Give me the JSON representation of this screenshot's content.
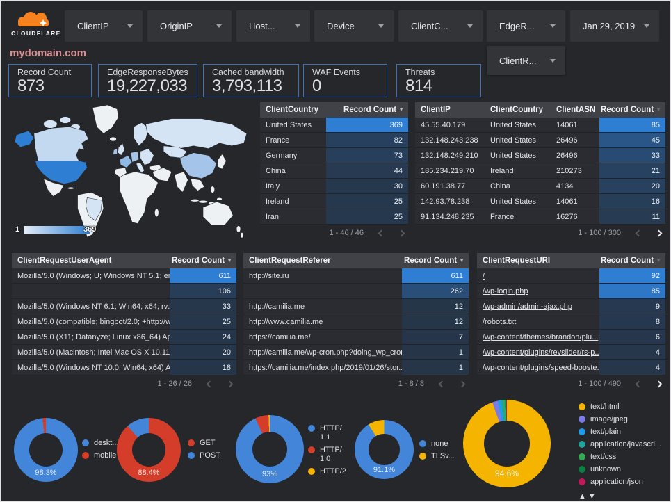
{
  "header": {
    "brand": "CLOUDFLARE",
    "filters": [
      "ClientIP",
      "OriginIP",
      "Host...",
      "Device",
      "ClientC...",
      "EdgeR..."
    ],
    "secondary_filter": "ClientR...",
    "date_filter": "Jan 29, 2019"
  },
  "title": "mydomain.com",
  "scorecards": [
    {
      "label": "Record Count",
      "value": "873"
    },
    {
      "label": "EdgeResponseBytes",
      "value": "19,227,033"
    },
    {
      "label": "Cached bandwidth",
      "value": "3,793,113"
    },
    {
      "label": "WAF Events",
      "value": "0"
    },
    {
      "label": "Threats",
      "value": "814"
    }
  ],
  "map": {
    "legend_min": "1",
    "legend_max": "369"
  },
  "icons": {
    "chevron_down": "▾",
    "sort_desc": "▼",
    "legend_up": "▲",
    "legend_down": "▼"
  },
  "colors": {
    "accent_blue": "#2e7ed3",
    "heat_low": "#263548",
    "scorecard_border": "#3e72b8",
    "title": "#d98e92",
    "blue": "#4285d9",
    "red": "#d43d2a",
    "yellow": "#f4b400"
  },
  "tables": {
    "client_country": {
      "columns": [
        "ClientCountry",
        "Record Count"
      ],
      "rows": [
        [
          "United States",
          369
        ],
        [
          "France",
          82
        ],
        [
          "Germany",
          73
        ],
        [
          "China",
          44
        ],
        [
          "Italy",
          30
        ],
        [
          "Ireland",
          25
        ],
        [
          "Iran",
          25
        ]
      ],
      "max": 369,
      "pagination": "1 - 46 / 46",
      "prev_enabled": false,
      "next_enabled": false
    },
    "client_ip": {
      "columns": [
        "ClientIP",
        "ClientCountry",
        "ClientASN",
        "Record Count"
      ],
      "rows": [
        [
          "45.55.40.179",
          "United States",
          "14061",
          85
        ],
        [
          "132.148.243.238",
          "United States",
          "26496",
          45
        ],
        [
          "132.148.249.210",
          "United States",
          "26496",
          33
        ],
        [
          "185.234.219.70",
          "Ireland",
          "210273",
          21
        ],
        [
          "60.191.38.77",
          "China",
          "4134",
          20
        ],
        [
          "142.93.78.238",
          "United States",
          "14061",
          16
        ],
        [
          "91.134.248.235",
          "France",
          "16276",
          11
        ]
      ],
      "max": 85,
      "pagination": "1 - 100 / 300",
      "prev_enabled": false,
      "next_enabled": true
    },
    "user_agent": {
      "columns": [
        "ClientRequestUserAgent",
        "Record Count"
      ],
      "rows": [
        [
          "Mozilla/5.0 (Windows; U; Windows NT 5.1; en-U...",
          611
        ],
        [
          "",
          106
        ],
        [
          "Mozilla/5.0 (Windows NT 6.1; Win64; x64; rv:64....",
          33
        ],
        [
          "Mozilla/5.0 (compatible; bingbot/2.0; +http://w...",
          25
        ],
        [
          "Mozilla/5.0 (X11; Datanyze; Linux x86_64) Appl...",
          24
        ],
        [
          "Mozilla/5.0 (Macintosh; Intel Mac OS X 10.11; r...",
          20
        ],
        [
          "Mozilla/5.0 (Windows NT 10.0; Win64; x64) App...",
          18
        ]
      ],
      "max": 611,
      "pagination": "1 - 26 / 26",
      "prev_enabled": false,
      "next_enabled": false
    },
    "referer": {
      "columns": [
        "ClientRequestReferer",
        "Record Count"
      ],
      "rows": [
        [
          "http://site.ru",
          611
        ],
        [
          "",
          262
        ],
        [
          "http://camilia.me",
          12
        ],
        [
          "http://www.camilia.me",
          12
        ],
        [
          "https://camilia.me/",
          7
        ],
        [
          "http://camilia.me/wp-cron.php?doing_wp_cron...",
          1
        ],
        [
          "https://camilia.me/index.php/2019/01/26/stor...",
          1
        ]
      ],
      "max": 611,
      "pagination": "1 - 8 / 8",
      "prev_enabled": false,
      "next_enabled": false
    },
    "uri": {
      "columns": [
        "ClientRequestURI",
        "Record Count"
      ],
      "rows": [
        [
          "/",
          92
        ],
        [
          "/wp-login.php",
          85
        ],
        [
          "/wp-admin/admin-ajax.php",
          9
        ],
        [
          "/robots.txt",
          8
        ],
        [
          "/wp-content/themes/brandon/plu...",
          6
        ],
        [
          "/wp-content/plugins/revslider/rs-p...",
          4
        ],
        [
          "/wp-content/plugins/speed-booste...",
          4
        ]
      ],
      "max": 92,
      "pagination": "1 - 100 / 490",
      "prev_enabled": false,
      "next_enabled": true,
      "links": true
    }
  },
  "chart_data": [
    {
      "type": "choropleth",
      "name": "record-count-by-country",
      "min": 1,
      "max": 369,
      "values": {
        "United States": 369,
        "France": 82,
        "Germany": 73,
        "China": 44,
        "Italy": 30,
        "Ireland": 25,
        "Iran": 25
      }
    },
    {
      "type": "pie",
      "name": "device",
      "center_label": "98.3%",
      "series": [
        {
          "label": "deskt...",
          "value": 98.3,
          "color": "#4285d9"
        },
        {
          "label": "mobile",
          "value": 1.7,
          "color": "#d43d2a"
        }
      ]
    },
    {
      "type": "pie",
      "name": "http-method",
      "center_label": "88.4%",
      "series": [
        {
          "label": "GET",
          "value": 88.4,
          "color": "#d43d2a"
        },
        {
          "label": "POST",
          "value": 11.6,
          "color": "#4285d9"
        }
      ]
    },
    {
      "type": "pie",
      "name": "http-protocol",
      "center_label": "93%",
      "series": [
        {
          "label": "HTTP/\n1.1",
          "value": 93,
          "color": "#4285d9"
        },
        {
          "label": "HTTP/\n1.0",
          "value": 6.4,
          "color": "#d43d2a"
        },
        {
          "label": "HTTP/2",
          "value": 0.6,
          "color": "#f4b400"
        }
      ]
    },
    {
      "type": "pie",
      "name": "tls-version",
      "center_label": "91.1%",
      "series": [
        {
          "label": "none",
          "value": 91.1,
          "color": "#4285d9"
        },
        {
          "label": "TLSv...",
          "value": 8.9,
          "color": "#f4b400"
        }
      ]
    },
    {
      "type": "pie",
      "name": "content-type",
      "center_label": "94.6%",
      "legend_paging": true,
      "series": [
        {
          "label": "text/html",
          "value": 94.6,
          "color": "#f4b400"
        },
        {
          "label": "image/jpeg",
          "value": 2.0,
          "color": "#7b7be3"
        },
        {
          "label": "text/plain",
          "value": 1.2,
          "color": "#1e9be9"
        },
        {
          "label": "application/javascri...",
          "value": 0.9,
          "color": "#22a397"
        },
        {
          "label": "text/css",
          "value": 0.6,
          "color": "#34a853"
        },
        {
          "label": "unknown",
          "value": 0.4,
          "color": "#0b8043"
        },
        {
          "label": "application/json",
          "value": 0.3,
          "color": "#c2185b"
        }
      ]
    }
  ]
}
